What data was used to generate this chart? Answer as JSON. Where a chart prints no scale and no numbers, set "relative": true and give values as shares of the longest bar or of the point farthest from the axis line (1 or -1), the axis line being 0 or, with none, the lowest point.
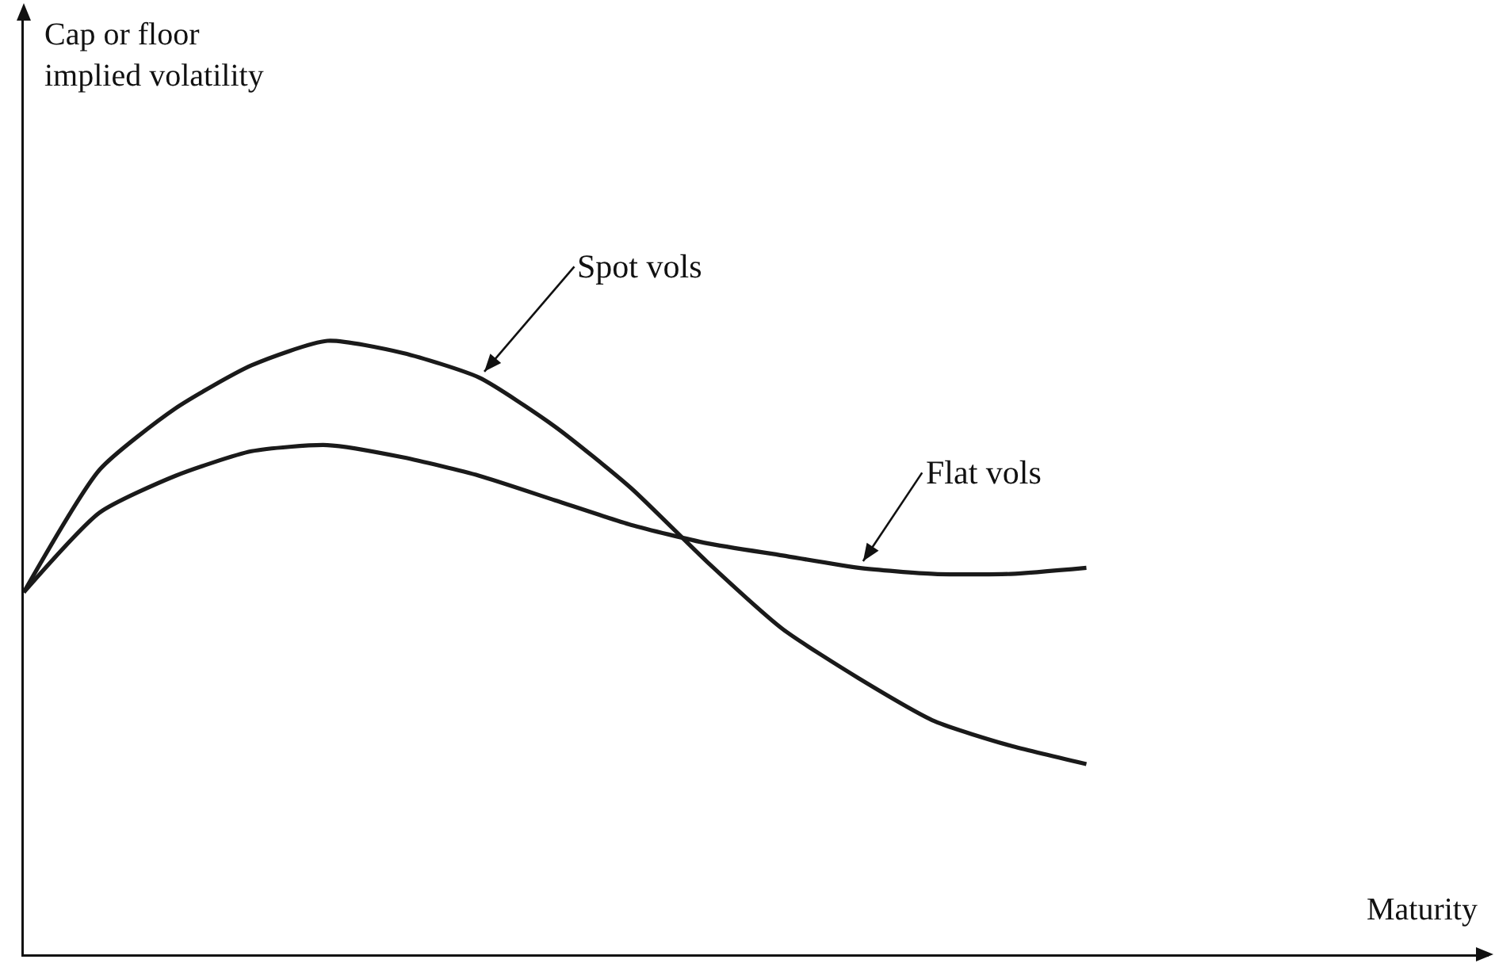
{
  "chart_data": {
    "type": "line",
    "relative": true,
    "annotations": [
      "Cap or floor\nimplied volatility",
      "Maturity"
    ],
    "legend": false,
    "tick_labels": false,
    "marker": "none",
    "line_style": "solid",
    "categories": [
      null,
      null,
      null,
      null,
      null,
      null,
      null,
      null,
      null,
      null,
      null,
      null,
      null,
      null,
      null
    ],
    "series": [
      {
        "name": "Spot vols",
        "color": "#1a1a1a",
        "values": [
          0.59,
          0.79,
          0.89,
          0.96,
          1.0,
          0.98,
          0.94,
          0.86,
          0.76,
          0.64,
          0.53,
          0.45,
          0.38,
          0.34,
          0.31
        ]
      },
      {
        "name": "Flat vols",
        "color": "#1a1a1a",
        "values": [
          0.59,
          0.72,
          0.78,
          0.82,
          0.83,
          0.81,
          0.78,
          0.74,
          0.7,
          0.67,
          0.65,
          0.63,
          0.62,
          0.62,
          0.63
        ]
      }
    ]
  }
}
